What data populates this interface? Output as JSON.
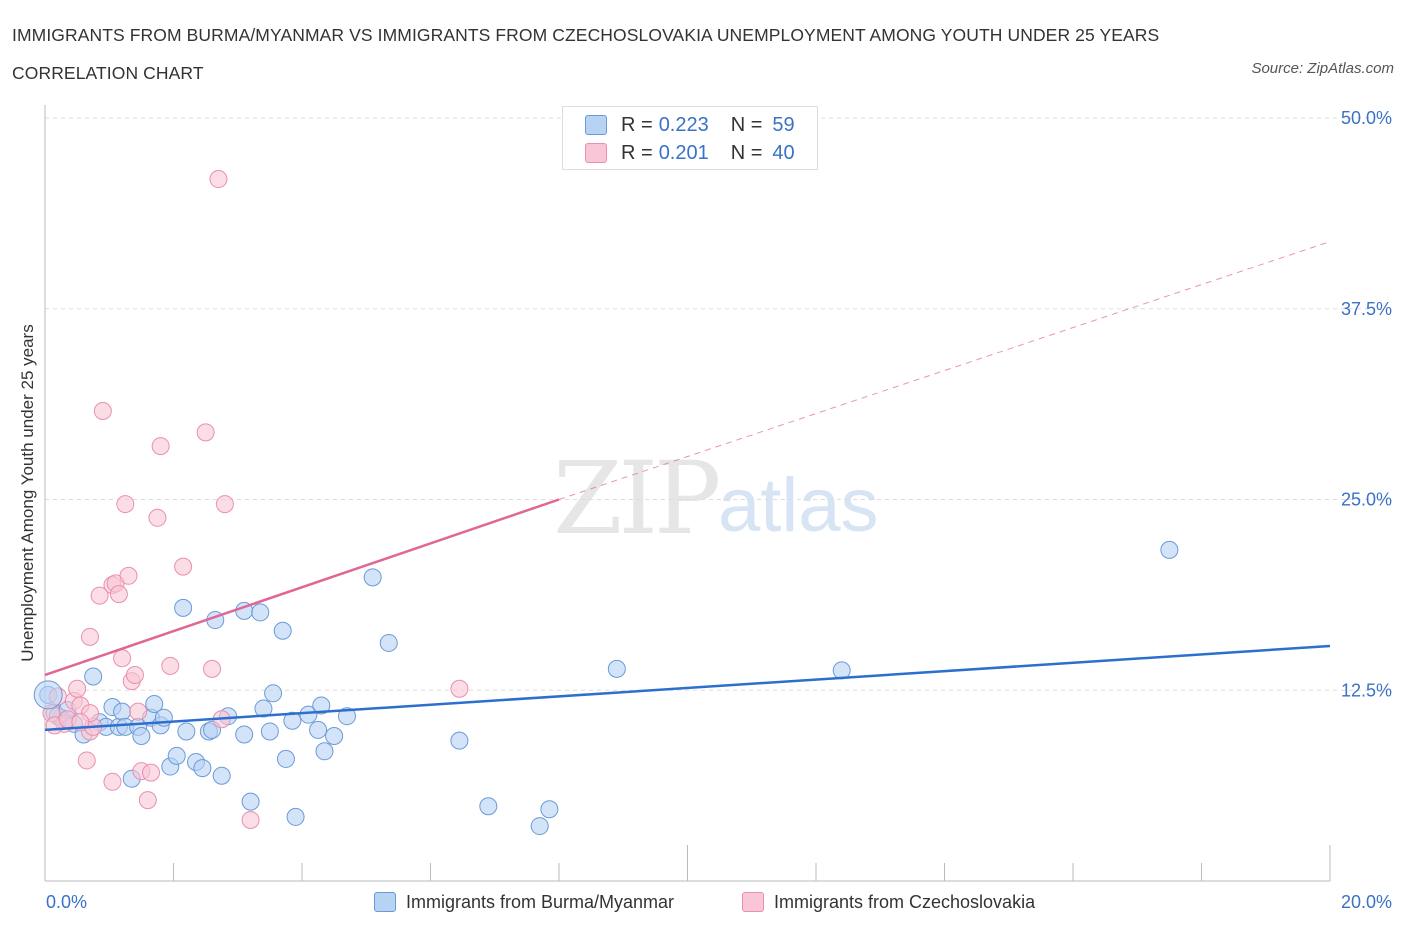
{
  "header": {
    "title": "IMMIGRANTS FROM BURMA/MYANMAR VS IMMIGRANTS FROM CZECHOSLOVAKIA UNEMPLOYMENT AMONG YOUTH UNDER 25 YEARS CORRELATION CHART",
    "source": "Source: ZipAtlas.com"
  },
  "watermark": {
    "zip": "ZIP",
    "atlas": "atlas"
  },
  "legend": {
    "rows": [
      {
        "r_label": "R = ",
        "r_value": "0.223",
        "n_label": "N = ",
        "n_value": "59"
      },
      {
        "r_label": "R = ",
        "r_value": "0.201",
        "n_label": "N = ",
        "n_value": "40"
      }
    ]
  },
  "bottom_legend": {
    "items": [
      {
        "label": "Immigrants from Burma/Myanmar"
      },
      {
        "label": "Immigrants from Czechoslovakia"
      }
    ]
  },
  "colors": {
    "blue_fill": "#b8d2f4",
    "blue_stroke": "#6b9ad8",
    "blue_line": "#2c6fce",
    "pink_fill": "#f8c6d6",
    "pink_stroke": "#ea8fae",
    "pink_line": "#e06794",
    "tick_text": "#3a72c6",
    "grid": "#dddddd"
  },
  "chart_data": {
    "type": "scatter",
    "title": "IMMIGRANTS FROM BURMA/MYANMAR VS IMMIGRANTS FROM CZECHOSLOVAKIA UNEMPLOYMENT AMONG YOUTH UNDER 25 YEARS CORRELATION CHART",
    "xlabel": "",
    "ylabel": "Unemployment Among Youth under 25 years",
    "xlim": [
      0,
      20
    ],
    "ylim": [
      0,
      50
    ],
    "x_tick_labels": [
      "0.0%",
      "20.0%"
    ],
    "y_ticks": [
      12.5,
      25.0,
      37.5,
      50.0
    ],
    "y_tick_labels": [
      "12.5%",
      "25.0%",
      "37.5%",
      "50.0%"
    ],
    "grid": true,
    "series": [
      {
        "name": "Immigrants from Burma/Myanmar",
        "R": 0.223,
        "N": 59,
        "trend": {
          "x0": 0,
          "y0": 9.9,
          "x1": 20,
          "y1": 15.4
        },
        "points": [
          [
            0.05,
            12.2
          ],
          [
            0.15,
            11.0
          ],
          [
            0.25,
            10.7
          ],
          [
            0.3,
            10.5
          ],
          [
            0.45,
            10.3
          ],
          [
            0.6,
            9.6
          ],
          [
            0.75,
            13.4
          ],
          [
            0.85,
            10.4
          ],
          [
            0.95,
            10.1
          ],
          [
            1.05,
            11.4
          ],
          [
            1.15,
            10.1
          ],
          [
            1.2,
            11.1
          ],
          [
            1.25,
            10.1
          ],
          [
            1.35,
            6.7
          ],
          [
            1.45,
            10.1
          ],
          [
            1.5,
            9.5
          ],
          [
            1.65,
            10.7
          ],
          [
            1.7,
            11.6
          ],
          [
            1.8,
            10.2
          ],
          [
            1.85,
            10.7
          ],
          [
            1.95,
            7.5
          ],
          [
            2.05,
            8.2
          ],
          [
            2.15,
            17.9
          ],
          [
            2.2,
            9.8
          ],
          [
            2.35,
            7.8
          ],
          [
            2.45,
            7.4
          ],
          [
            2.55,
            9.8
          ],
          [
            2.6,
            9.9
          ],
          [
            2.65,
            17.1
          ],
          [
            2.75,
            6.9
          ],
          [
            2.85,
            10.8
          ],
          [
            3.1,
            9.6
          ],
          [
            3.1,
            17.7
          ],
          [
            3.2,
            5.2
          ],
          [
            3.35,
            17.6
          ],
          [
            3.4,
            11.3
          ],
          [
            3.5,
            9.8
          ],
          [
            3.55,
            12.3
          ],
          [
            3.7,
            16.4
          ],
          [
            3.75,
            8.0
          ],
          [
            3.85,
            10.5
          ],
          [
            3.9,
            4.2
          ],
          [
            4.1,
            10.9
          ],
          [
            4.25,
            9.9
          ],
          [
            4.3,
            11.5
          ],
          [
            4.35,
            8.5
          ],
          [
            4.5,
            9.5
          ],
          [
            4.7,
            10.8
          ],
          [
            5.1,
            19.9
          ],
          [
            5.35,
            15.6
          ],
          [
            6.45,
            9.2
          ],
          [
            6.9,
            4.9
          ],
          [
            7.7,
            3.6
          ],
          [
            7.85,
            4.7
          ],
          [
            8.9,
            13.9
          ],
          [
            12.4,
            13.8
          ],
          [
            17.5,
            21.7
          ],
          [
            0.2,
            10.8
          ],
          [
            0.35,
            11.2
          ]
        ]
      },
      {
        "name": "Immigrants from Czechoslovakia",
        "R": 0.201,
        "N": 40,
        "trend": {
          "x0": 0,
          "y0": 13.5,
          "x1": 8,
          "y1": 25.0
        },
        "trend_dashed": {
          "x0": 8,
          "y0": 25.0,
          "x1": 20,
          "y1": 41.9
        },
        "points": [
          [
            0.1,
            11.0
          ],
          [
            0.2,
            12.1
          ],
          [
            0.3,
            10.3
          ],
          [
            0.45,
            11.8
          ],
          [
            0.55,
            11.5
          ],
          [
            0.5,
            12.6
          ],
          [
            0.7,
            9.8
          ],
          [
            0.75,
            10.1
          ],
          [
            0.7,
            11.0
          ],
          [
            0.65,
            7.9
          ],
          [
            0.7,
            16.0
          ],
          [
            0.85,
            18.7
          ],
          [
            0.9,
            30.8
          ],
          [
            1.05,
            19.4
          ],
          [
            1.05,
            6.5
          ],
          [
            1.1,
            19.5
          ],
          [
            1.15,
            18.8
          ],
          [
            1.2,
            14.6
          ],
          [
            1.25,
            24.7
          ],
          [
            1.3,
            20.0
          ],
          [
            1.35,
            13.1
          ],
          [
            1.4,
            13.5
          ],
          [
            1.45,
            11.1
          ],
          [
            1.5,
            7.2
          ],
          [
            1.6,
            5.3
          ],
          [
            1.65,
            7.1
          ],
          [
            1.75,
            23.8
          ],
          [
            1.8,
            28.5
          ],
          [
            1.95,
            14.1
          ],
          [
            2.15,
            20.6
          ],
          [
            2.5,
            29.4
          ],
          [
            2.6,
            13.9
          ],
          [
            2.7,
            46.0
          ],
          [
            2.75,
            10.6
          ],
          [
            2.8,
            24.7
          ],
          [
            3.2,
            4.0
          ],
          [
            6.45,
            12.6
          ],
          [
            0.15,
            10.2
          ],
          [
            0.35,
            10.6
          ],
          [
            0.55,
            10.4
          ]
        ]
      }
    ]
  }
}
